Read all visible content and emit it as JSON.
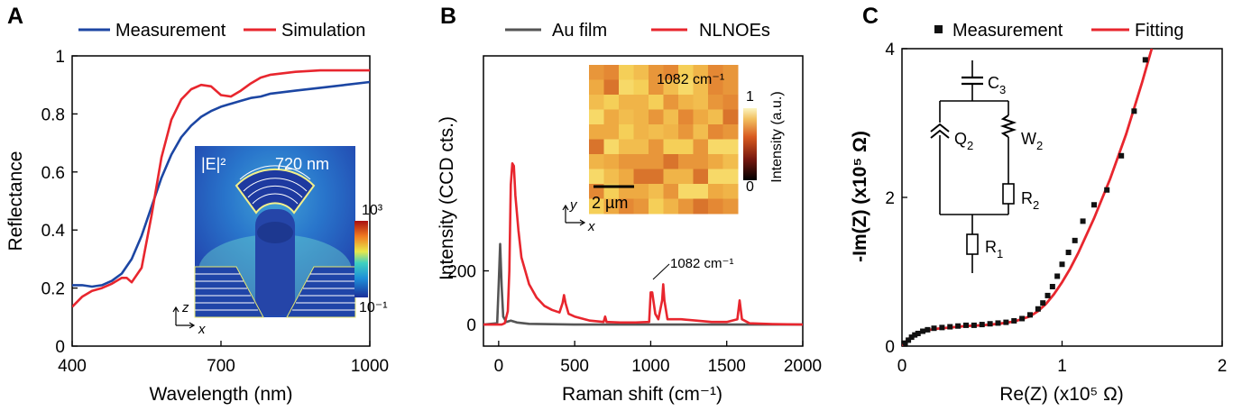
{
  "panels": {
    "a": {
      "label": "A"
    },
    "b": {
      "label": "B"
    },
    "c": {
      "label": "C"
    }
  },
  "colors": {
    "blue": "#1c46a3",
    "red": "#e8262e",
    "gray": "#555555",
    "black": "#111111"
  },
  "chart_data": [
    {
      "id": "A",
      "type": "line",
      "xlabel": "Wavelength (nm)",
      "ylabel": "Reflectance",
      "xlim": [
        400,
        1000
      ],
      "ylim": [
        0,
        1
      ],
      "xticks": [
        "400",
        "700",
        "1000"
      ],
      "yticks": [
        "0",
        "0.2",
        "0.4",
        "0.6",
        "0.8",
        "1"
      ],
      "legend_position": "top",
      "series": [
        {
          "name": "Measurement",
          "color": "#1c46a3",
          "x": [
            400,
            420,
            440,
            460,
            480,
            500,
            520,
            540,
            560,
            580,
            600,
            620,
            640,
            660,
            680,
            700,
            720,
            740,
            760,
            780,
            800,
            850,
            900,
            950,
            1000
          ],
          "y": [
            0.21,
            0.21,
            0.205,
            0.21,
            0.225,
            0.25,
            0.3,
            0.38,
            0.48,
            0.58,
            0.66,
            0.72,
            0.76,
            0.79,
            0.81,
            0.825,
            0.835,
            0.845,
            0.855,
            0.86,
            0.87,
            0.88,
            0.89,
            0.9,
            0.91
          ]
        },
        {
          "name": "Simulation",
          "color": "#e8262e",
          "x": [
            400,
            420,
            440,
            460,
            480,
            500,
            510,
            520,
            540,
            560,
            580,
            600,
            620,
            640,
            660,
            680,
            700,
            720,
            740,
            760,
            780,
            800,
            850,
            900,
            950,
            1000
          ],
          "y": [
            0.135,
            0.17,
            0.19,
            0.2,
            0.215,
            0.235,
            0.235,
            0.22,
            0.27,
            0.45,
            0.65,
            0.78,
            0.85,
            0.885,
            0.9,
            0.895,
            0.865,
            0.86,
            0.88,
            0.905,
            0.925,
            0.935,
            0.945,
            0.95,
            0.95,
            0.95
          ]
        }
      ],
      "inset": {
        "title": "|E|²",
        "wavelength_label": "720 nm",
        "colorbar_max": "10³",
        "colorbar_min": "10⁻¹",
        "axis_z": "z",
        "axis_x": "x"
      }
    },
    {
      "id": "B",
      "type": "line",
      "xlabel": "Raman shift (cm⁻¹)",
      "ylabel": "Intensity (CCD cts.)",
      "xlim": [
        -100,
        2000
      ],
      "ylim": [
        -80,
        1000
      ],
      "xticks": [
        "0",
        "500",
        "1000",
        "1500",
        "2000"
      ],
      "yticks": [
        "0",
        "200"
      ],
      "legend_position": "top",
      "annotation": "1082 cm⁻¹",
      "series": [
        {
          "name": "Au film",
          "color": "#555555",
          "x": [
            -100,
            -10,
            0,
            10,
            20,
            30,
            50,
            80,
            120,
            200,
            500,
            1000,
            1500,
            2000
          ],
          "y": [
            0,
            5,
            150,
            300,
            140,
            30,
            10,
            15,
            8,
            3,
            0,
            0,
            0,
            0
          ]
        },
        {
          "name": "NLNOEs",
          "color": "#e8262e",
          "x": [
            -100,
            20,
            40,
            60,
            70,
            80,
            90,
            100,
            110,
            130,
            150,
            200,
            250,
            300,
            350,
            400,
            420,
            430,
            440,
            460,
            500,
            600,
            690,
            700,
            710,
            800,
            900,
            990,
            1000,
            1010,
            1030,
            1050,
            1075,
            1082,
            1090,
            1110,
            1200,
            1300,
            1400,
            1500,
            1570,
            1585,
            1600,
            1650,
            1800,
            2000
          ],
          "y": [
            0,
            0,
            5,
            50,
            200,
            520,
            600,
            590,
            480,
            350,
            250,
            150,
            100,
            70,
            55,
            45,
            80,
            110,
            80,
            40,
            30,
            15,
            10,
            30,
            10,
            8,
            8,
            10,
            120,
            120,
            40,
            20,
            90,
            150,
            90,
            20,
            20,
            15,
            10,
            10,
            20,
            90,
            20,
            5,
            2,
            0
          ]
        }
      ],
      "inset": {
        "peak_label": "1082 cm⁻¹",
        "scale_label": "2 µm",
        "colorbar_max": "1",
        "colorbar_min": "0",
        "colorbar_label": "Intensity (a.u.)",
        "axis_y": "y",
        "axis_x": "x"
      }
    },
    {
      "id": "C",
      "type": "scatter",
      "xlabel": "Re(Z) (x10⁵ Ω)",
      "ylabel": "-Im(Z) (x10⁵ Ω)",
      "xlim": [
        0,
        2
      ],
      "ylim": [
        0,
        4
      ],
      "xticks": [
        "0",
        "1",
        "2"
      ],
      "yticks": [
        "0",
        "2",
        "4"
      ],
      "legend_position": "top",
      "series": [
        {
          "name": "Measurement",
          "color": "#111111",
          "x": [
            0.02,
            0.04,
            0.06,
            0.08,
            0.1,
            0.13,
            0.16,
            0.2,
            0.25,
            0.3,
            0.35,
            0.4,
            0.45,
            0.5,
            0.55,
            0.6,
            0.65,
            0.7,
            0.75,
            0.8,
            0.85,
            0.88,
            0.91,
            0.94,
            0.97,
            1.0,
            1.04,
            1.08,
            1.13,
            1.2,
            1.28,
            1.37,
            1.45,
            1.52
          ],
          "y": [
            0.04,
            0.08,
            0.12,
            0.15,
            0.17,
            0.2,
            0.22,
            0.24,
            0.25,
            0.26,
            0.27,
            0.28,
            0.28,
            0.29,
            0.3,
            0.31,
            0.32,
            0.34,
            0.37,
            0.42,
            0.5,
            0.58,
            0.68,
            0.8,
            0.94,
            1.1,
            1.26,
            1.42,
            1.68,
            1.9,
            2.1,
            2.56,
            3.16,
            3.85
          ]
        },
        {
          "name": "Fitting",
          "color": "#e8262e",
          "x": [
            0,
            0.02,
            0.05,
            0.1,
            0.15,
            0.2,
            0.3,
            0.4,
            0.5,
            0.6,
            0.7,
            0.8,
            0.85,
            0.9,
            0.95,
            1.0,
            1.05,
            1.1,
            1.2,
            1.3,
            1.4,
            1.5,
            1.56
          ],
          "y": [
            0,
            0.05,
            0.11,
            0.18,
            0.21,
            0.23,
            0.25,
            0.27,
            0.28,
            0.3,
            0.33,
            0.4,
            0.47,
            0.57,
            0.7,
            0.86,
            1.04,
            1.25,
            1.72,
            2.25,
            2.85,
            3.55,
            4.0
          ]
        }
      ],
      "inset": {
        "c3": "C",
        "c3_sub": "3",
        "q2": "Q",
        "q2_sub": "2",
        "w2": "W",
        "w2_sub": "2",
        "r2": "R",
        "r2_sub": "2",
        "r1": "R",
        "r1_sub": "1"
      }
    }
  ]
}
